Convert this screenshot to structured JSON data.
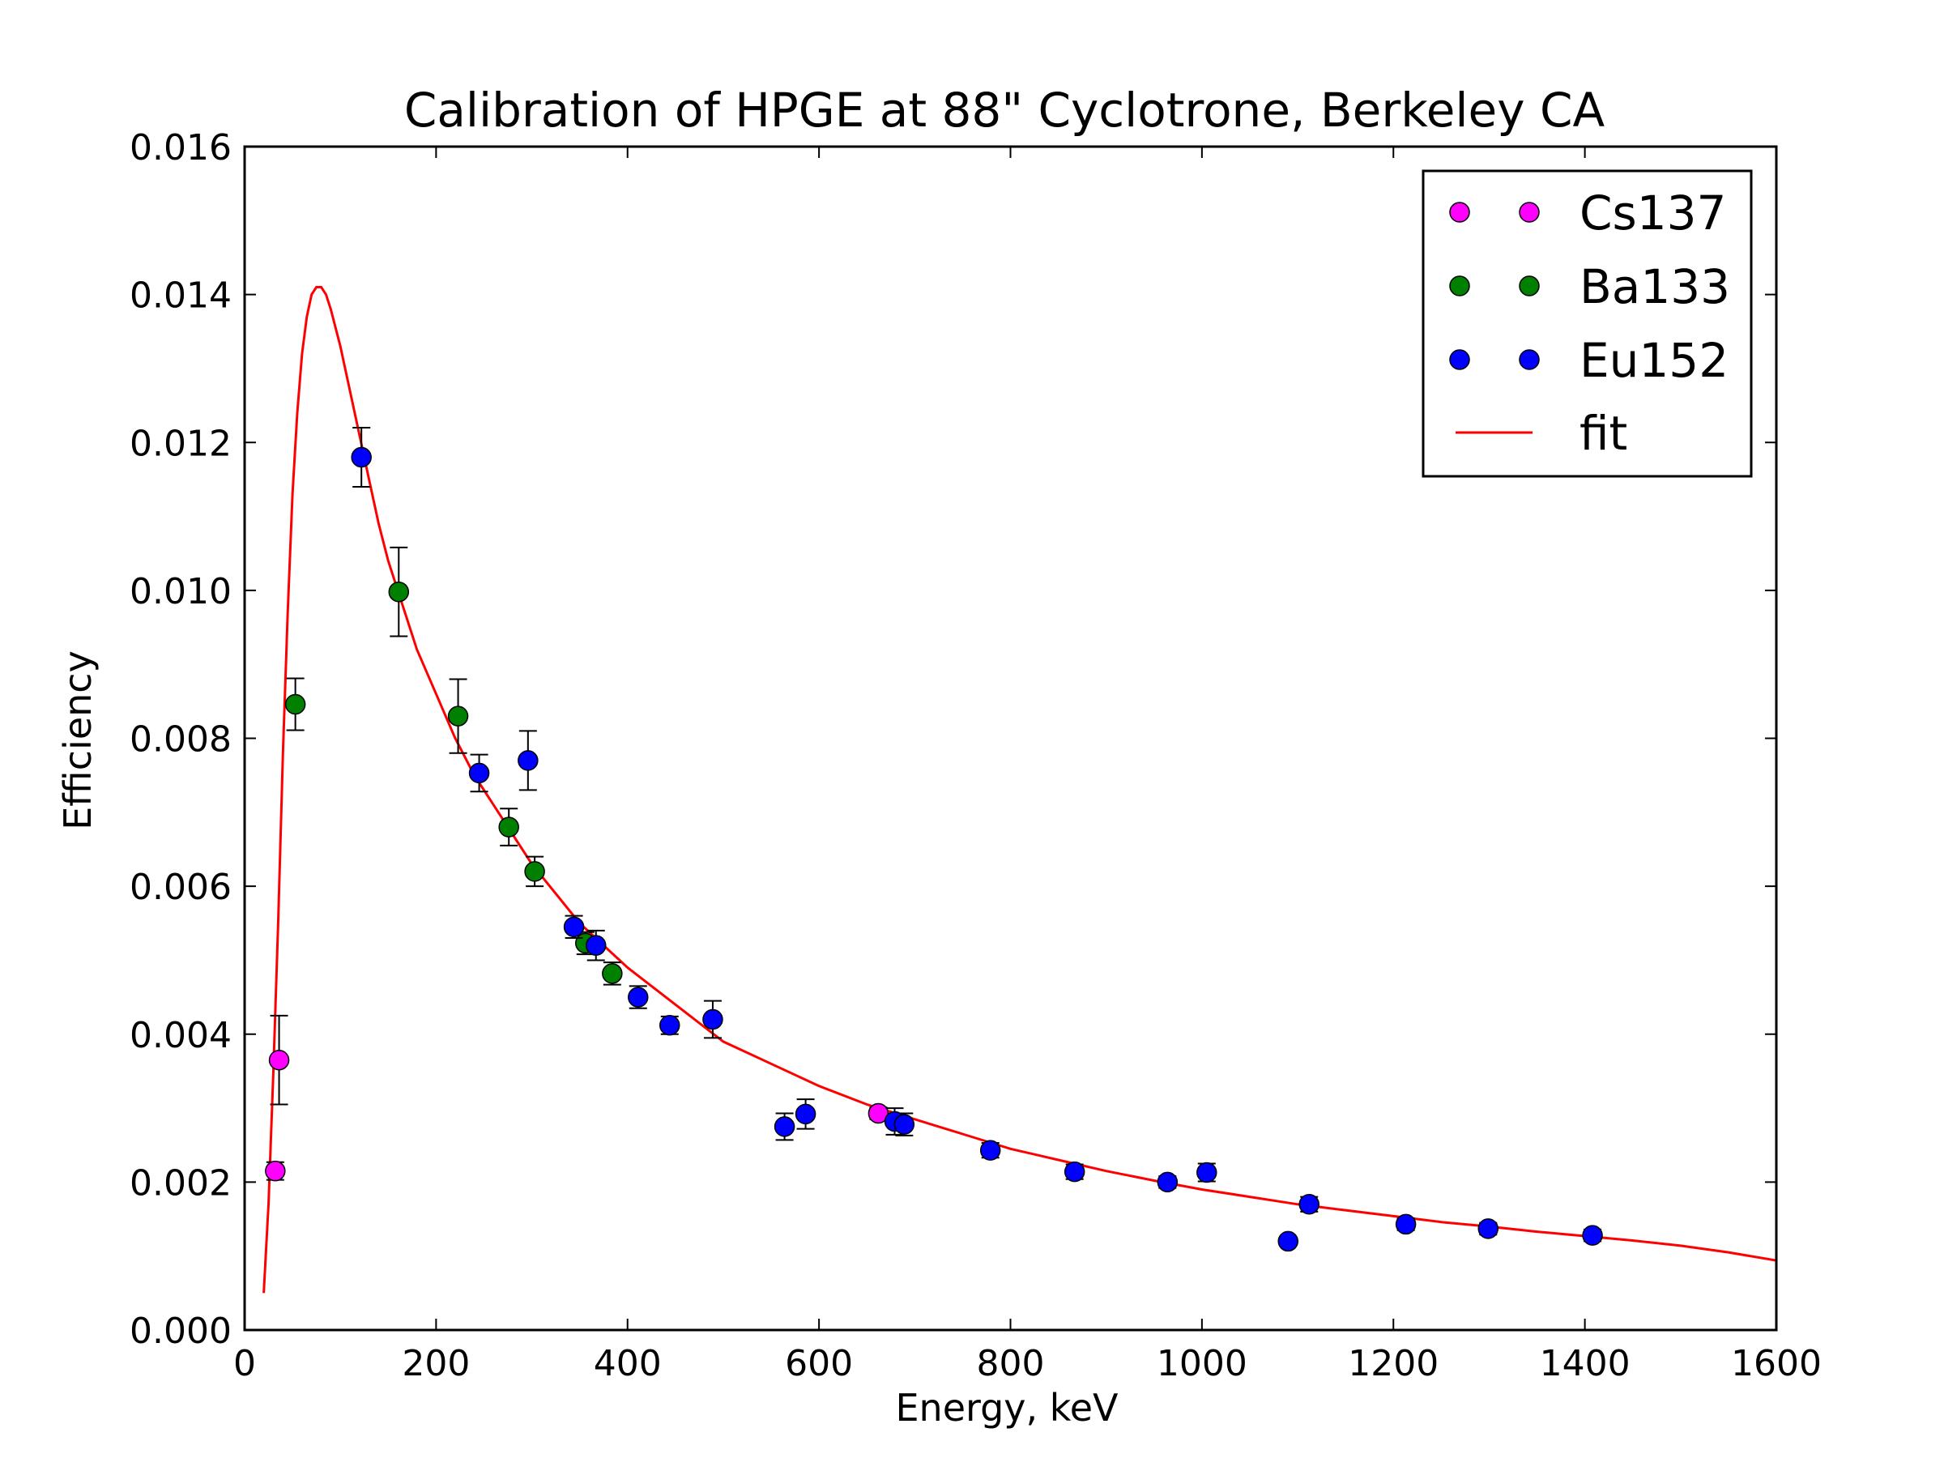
{
  "chart_data": {
    "type": "scatter",
    "title": "Calibration of HPGE at 88\" Cyclotrone, Berkeley CA",
    "xlabel": "Energy, keV",
    "ylabel": "Efficiency",
    "xlim": [
      0,
      1600
    ],
    "ylim": [
      0,
      0.016
    ],
    "xticks": [
      "0",
      "200",
      "400",
      "600",
      "800",
      "1000",
      "1200",
      "1400",
      "1600"
    ],
    "yticks": [
      "0.000",
      "0.002",
      "0.004",
      "0.006",
      "0.008",
      "0.010",
      "0.012",
      "0.014",
      "0.016"
    ],
    "grid": false,
    "legend_position": "top-right",
    "series": [
      {
        "name": "Cs137",
        "color": "#ff00ff",
        "points": [
          {
            "x": 32,
            "y": 0.00215,
            "err": 0.00012
          },
          {
            "x": 36,
            "y": 0.00365,
            "err": 0.0006
          },
          {
            "x": 662,
            "y": 0.00293,
            "err": 8e-05
          }
        ]
      },
      {
        "name": "Ba133",
        "color": "#008000",
        "points": [
          {
            "x": 53,
            "y": 0.00846,
            "err": 0.00035
          },
          {
            "x": 161,
            "y": 0.00998,
            "err": 0.0006
          },
          {
            "x": 223,
            "y": 0.0083,
            "err": 0.0005
          },
          {
            "x": 276,
            "y": 0.0068,
            "err": 0.00025
          },
          {
            "x": 303,
            "y": 0.0062,
            "err": 0.0002
          },
          {
            "x": 356,
            "y": 0.00523,
            "err": 0.00015
          },
          {
            "x": 384,
            "y": 0.00482,
            "err": 0.00015
          }
        ]
      },
      {
        "name": "Eu152",
        "color": "#0000ff",
        "points": [
          {
            "x": 122,
            "y": 0.0118,
            "err": 0.0004
          },
          {
            "x": 245,
            "y": 0.00753,
            "err": 0.00025
          },
          {
            "x": 296,
            "y": 0.0077,
            "err": 0.0004
          },
          {
            "x": 344,
            "y": 0.00545,
            "err": 0.00015
          },
          {
            "x": 367,
            "y": 0.0052,
            "err": 0.0002
          },
          {
            "x": 411,
            "y": 0.0045,
            "err": 0.00015
          },
          {
            "x": 444,
            "y": 0.00412,
            "err": 0.00012
          },
          {
            "x": 489,
            "y": 0.0042,
            "err": 0.00025
          },
          {
            "x": 564,
            "y": 0.00275,
            "err": 0.00018
          },
          {
            "x": 586,
            "y": 0.00292,
            "err": 0.0002
          },
          {
            "x": 679,
            "y": 0.00282,
            "err": 0.00018
          },
          {
            "x": 689,
            "y": 0.00278,
            "err": 0.00015
          },
          {
            "x": 779,
            "y": 0.00243,
            "err": 0.0001
          },
          {
            "x": 867,
            "y": 0.00214,
            "err": 0.0001
          },
          {
            "x": 964,
            "y": 0.002,
            "err": 8e-05
          },
          {
            "x": 1005,
            "y": 0.00213,
            "err": 0.00012
          },
          {
            "x": 1090,
            "y": 0.0012,
            "err": 6e-05
          },
          {
            "x": 1112,
            "y": 0.0017,
            "err": 0.0001
          },
          {
            "x": 1213,
            "y": 0.00143,
            "err": 8e-05
          },
          {
            "x": 1299,
            "y": 0.00137,
            "err": 8e-05
          },
          {
            "x": 1408,
            "y": 0.00128,
            "err": 8e-05
          }
        ]
      }
    ],
    "fit": {
      "name": "fit",
      "color": "#ff0000",
      "type": "line",
      "points": [
        [
          20,
          0.0005
        ],
        [
          25,
          0.0017
        ],
        [
          30,
          0.0035
        ],
        [
          35,
          0.0055
        ],
        [
          40,
          0.0078
        ],
        [
          45,
          0.0097
        ],
        [
          50,
          0.0113
        ],
        [
          55,
          0.0124
        ],
        [
          60,
          0.0132
        ],
        [
          65,
          0.0137
        ],
        [
          70,
          0.014
        ],
        [
          75,
          0.0141
        ],
        [
          80,
          0.0141
        ],
        [
          85,
          0.014
        ],
        [
          90,
          0.0138
        ],
        [
          95,
          0.01355
        ],
        [
          100,
          0.0133
        ],
        [
          110,
          0.0127
        ],
        [
          120,
          0.0121
        ],
        [
          130,
          0.0115
        ],
        [
          140,
          0.0109
        ],
        [
          150,
          0.0104
        ],
        [
          160,
          0.01
        ],
        [
          180,
          0.0092
        ],
        [
          200,
          0.0086
        ],
        [
          220,
          0.008
        ],
        [
          240,
          0.0075
        ],
        [
          260,
          0.0071
        ],
        [
          280,
          0.0067
        ],
        [
          300,
          0.0063
        ],
        [
          350,
          0.0055
        ],
        [
          400,
          0.0049
        ],
        [
          450,
          0.0044
        ],
        [
          500,
          0.0039
        ],
        [
          550,
          0.0036
        ],
        [
          600,
          0.0033
        ],
        [
          650,
          0.00305
        ],
        [
          700,
          0.00285
        ],
        [
          750,
          0.00265
        ],
        [
          800,
          0.00245
        ],
        [
          850,
          0.0023
        ],
        [
          900,
          0.00215
        ],
        [
          950,
          0.00202
        ],
        [
          1000,
          0.0019
        ],
        [
          1050,
          0.0018
        ],
        [
          1100,
          0.0017
        ],
        [
          1150,
          0.00162
        ],
        [
          1200,
          0.00154
        ],
        [
          1250,
          0.00146
        ],
        [
          1300,
          0.0014
        ],
        [
          1350,
          0.00133
        ],
        [
          1400,
          0.00127
        ],
        [
          1450,
          0.00121
        ],
        [
          1500,
          0.00114
        ],
        [
          1550,
          0.00105
        ],
        [
          1600,
          0.00094
        ]
      ]
    },
    "legend": [
      "Cs137",
      "Ba133",
      "Eu152",
      "fit"
    ]
  }
}
